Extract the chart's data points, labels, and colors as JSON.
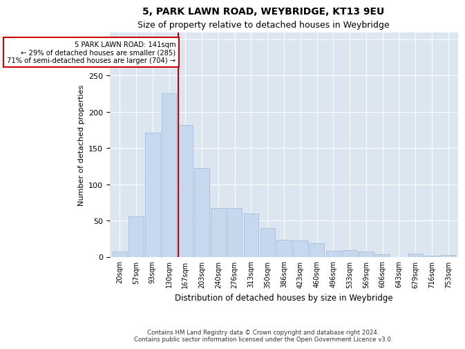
{
  "title1": "5, PARK LAWN ROAD, WEYBRIDGE, KT13 9EU",
  "title2": "Size of property relative to detached houses in Weybridge",
  "xlabel": "Distribution of detached houses by size in Weybridge",
  "ylabel": "Number of detached properties",
  "categories": [
    "20sqm",
    "57sqm",
    "93sqm",
    "130sqm",
    "167sqm",
    "203sqm",
    "240sqm",
    "276sqm",
    "313sqm",
    "350sqm",
    "386sqm",
    "423sqm",
    "460sqm",
    "496sqm",
    "533sqm",
    "569sqm",
    "606sqm",
    "643sqm",
    "679sqm",
    "716sqm",
    "753sqm"
  ],
  "values": [
    7,
    56,
    171,
    226,
    182,
    123,
    67,
    67,
    60,
    40,
    23,
    22,
    19,
    8,
    9,
    7,
    3,
    0,
    4,
    1,
    2
  ],
  "bar_color": "#c5d8ed",
  "bar_edge_color": "#9ab6d4",
  "vline_x": 3.55,
  "vline_color": "#cc0000",
  "annotation_text": "5 PARK LAWN ROAD: 141sqm\n← 29% of detached houses are smaller (285)\n71% of semi-detached houses are larger (704) →",
  "annotation_box_color": "#ffffff",
  "annotation_box_edge_color": "#cc0000",
  "ylim": [
    0,
    310
  ],
  "yticks": [
    0,
    50,
    100,
    150,
    200,
    250,
    300
  ],
  "background_color": "#dce6f1",
  "footer1": "Contains HM Land Registry data © Crown copyright and database right 2024.",
  "footer2": "Contains public sector information licensed under the Open Government Licence v3.0."
}
